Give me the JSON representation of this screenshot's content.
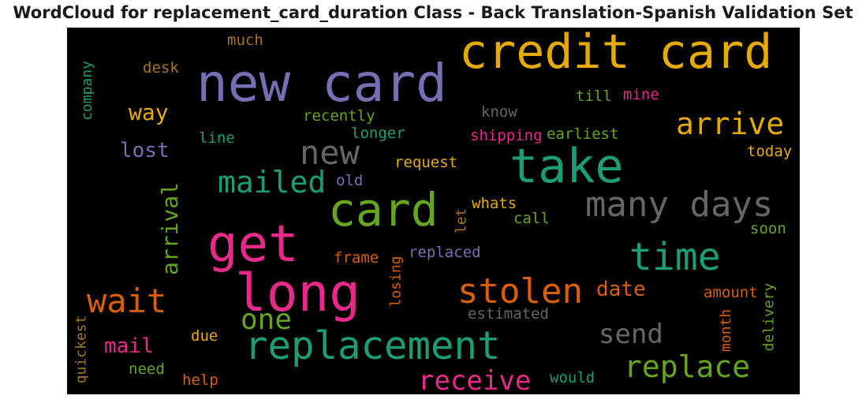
{
  "title": "WordCloud for replacement_card_duration Class - Back Translation-Spanish Validation Set",
  "colors": {
    "teal": "#1b9e77",
    "orange": "#d95f02",
    "purple": "#7570b3",
    "pink": "#e7298a",
    "green": "#66a61e",
    "gold": "#e6ab02",
    "brown": "#a6761d",
    "gray": "#666666",
    "background": "#000000"
  },
  "words": [
    "credit card",
    "new card",
    "take",
    "card",
    "get",
    "long",
    "replacement",
    "many days",
    "time",
    "stolen",
    "wait",
    "new",
    "arrive",
    "mailed",
    "one",
    "replace",
    "receive",
    "send",
    "arrival",
    "way",
    "lost",
    "mail",
    "date",
    "company",
    "quickest",
    "delivery",
    "month",
    "losing",
    "let",
    "desk",
    "much",
    "till",
    "mine",
    "know",
    "recently",
    "longer",
    "line",
    "shipping",
    "earliest",
    "today",
    "request",
    "old",
    "whats",
    "call",
    "soon",
    "frame",
    "replaced",
    "amount",
    "estimated",
    "due",
    "need",
    "help",
    "would"
  ]
}
